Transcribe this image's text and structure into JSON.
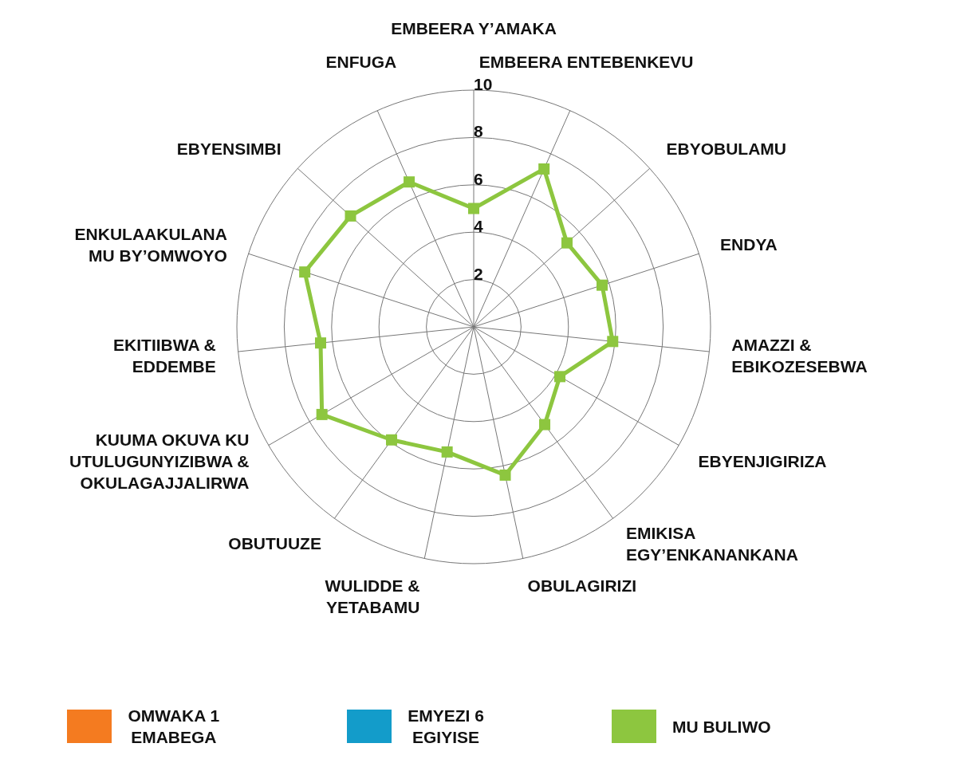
{
  "chart_data": {
    "type": "radar",
    "categories": [
      "EMBEERA Y’AMAKA",
      "EMBEERA ENTEBENKEVU",
      "EBYOBULAMU",
      "ENDYA",
      "AMAZZI &\nEBIKOZESEBWA",
      "EBYENJIGIRIZA",
      "EMIKISA\nEGY’ENKANANKANA",
      "OBULAGIRIZI",
      "WULIDDE &\nYETABAMU",
      "OBUTUUZE",
      "KUUMA OKUVA KU\nUTULUGUNYIZIBWA &\nOKULAGAJJALIRWA",
      "EKITIIBWA &\nEDDEMBE",
      "ENKULAAKULANA\nMU BY’OMWOYO",
      "EBYENSIMBI",
      "ENFUGA"
    ],
    "series": [
      {
        "name": "MU BULIWO",
        "color": "#8dc63f",
        "values": [
          5,
          7.3,
          5.3,
          5.7,
          5.9,
          4.2,
          5.1,
          6.4,
          5.4,
          5.9,
          7.4,
          6.5,
          7.5,
          7.0,
          6.7
        ]
      },
      {
        "name": "OMWAKA 1\nEMABEGA",
        "color": "#f47b20",
        "values": [
          null,
          null,
          null,
          null,
          null,
          null,
          null,
          null,
          null,
          null,
          null,
          null,
          null,
          null,
          null
        ]
      },
      {
        "name": "EMYEZI 6\nEGIYISE",
        "color": "#139cca",
        "values": [
          null,
          null,
          null,
          null,
          null,
          null,
          null,
          null,
          null,
          null,
          null,
          null,
          null,
          null,
          null
        ]
      }
    ],
    "ylim": [
      0,
      10
    ],
    "yticks": [
      2,
      4,
      6,
      8,
      10
    ],
    "grid": true,
    "legend": "bottom",
    "marker": "square"
  }
}
